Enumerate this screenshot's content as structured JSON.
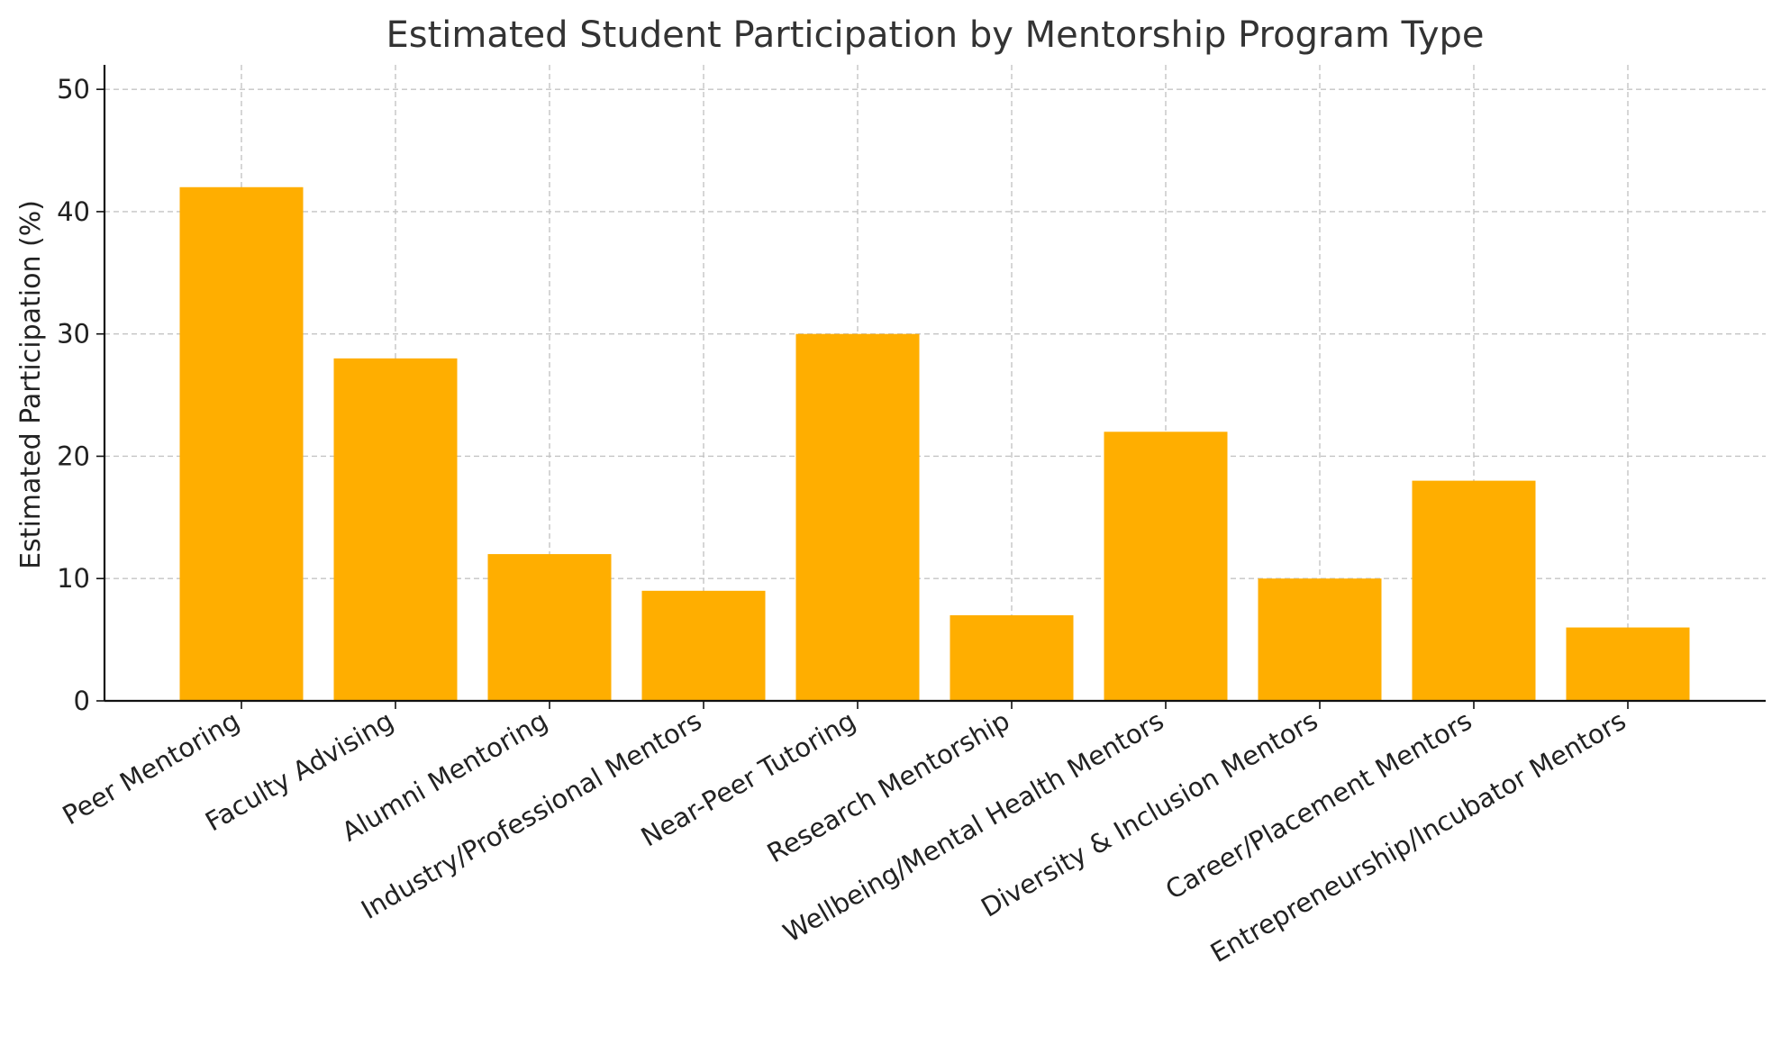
{
  "chart_data": {
    "type": "bar",
    "title": "Estimated Student Participation by Mentorship Program Type",
    "xlabel": "",
    "ylabel": "Estimated Participation (%)",
    "categories": [
      "Peer Mentoring",
      "Faculty Advising",
      "Alumni Mentoring",
      "Industry/Professional Mentors",
      "Near-Peer Tutoring",
      "Research Mentorship",
      "Wellbeing/Mental Health Mentors",
      "Diversity & Inclusion Mentors",
      "Career/Placement Mentors",
      "Entrepreneurship/Incubator Mentors"
    ],
    "values": [
      42,
      28,
      12,
      9,
      30,
      7,
      22,
      10,
      18,
      6
    ],
    "ylim": [
      0,
      52
    ],
    "yticks": [
      0,
      10,
      20,
      30,
      40,
      50
    ],
    "grid": true,
    "bar_color": "#FFAE00"
  }
}
